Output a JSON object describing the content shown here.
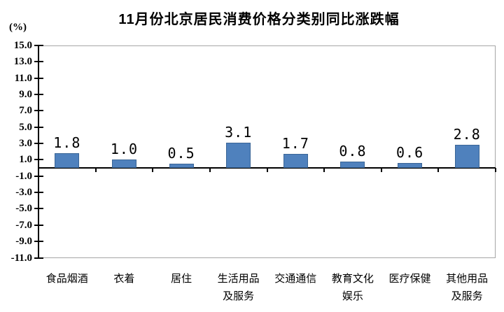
{
  "chart_data": {
    "type": "bar",
    "title": "11月份北京居民消费价格分类别同比涨跌幅",
    "ylabel": "(%)",
    "xlabel": "",
    "categories": [
      "食品烟酒",
      "衣着",
      "居住",
      "生活用品\n及服务",
      "交通通信",
      "教育文化\n娱乐",
      "医疗保健",
      "其他用品\n及服务"
    ],
    "values": [
      1.8,
      1.0,
      0.5,
      3.1,
      1.7,
      0.8,
      0.6,
      2.8
    ],
    "value_labels": [
      "1.8",
      "1.0",
      "0.5",
      "3.1",
      "1.7",
      "0.8",
      "0.6",
      "2.8"
    ],
    "ylim": [
      -11.0,
      15.0
    ],
    "y_tick_step": 2.0,
    "y_tick_labels": [
      "15.0",
      "13.0",
      "11.0",
      "9.0",
      "7.0",
      "5.0",
      "3.0",
      "1.0",
      "-1.0",
      "-3.0",
      "-5.0",
      "-7.0",
      "-9.0",
      "-11.0"
    ],
    "grid": "off",
    "legend": "none",
    "colors": {
      "bar_fill": "#4F81BD",
      "bar_border": "#3A6596",
      "axis": "#000000",
      "plot_border": "#A6A6A6",
      "text": "#000000"
    }
  }
}
